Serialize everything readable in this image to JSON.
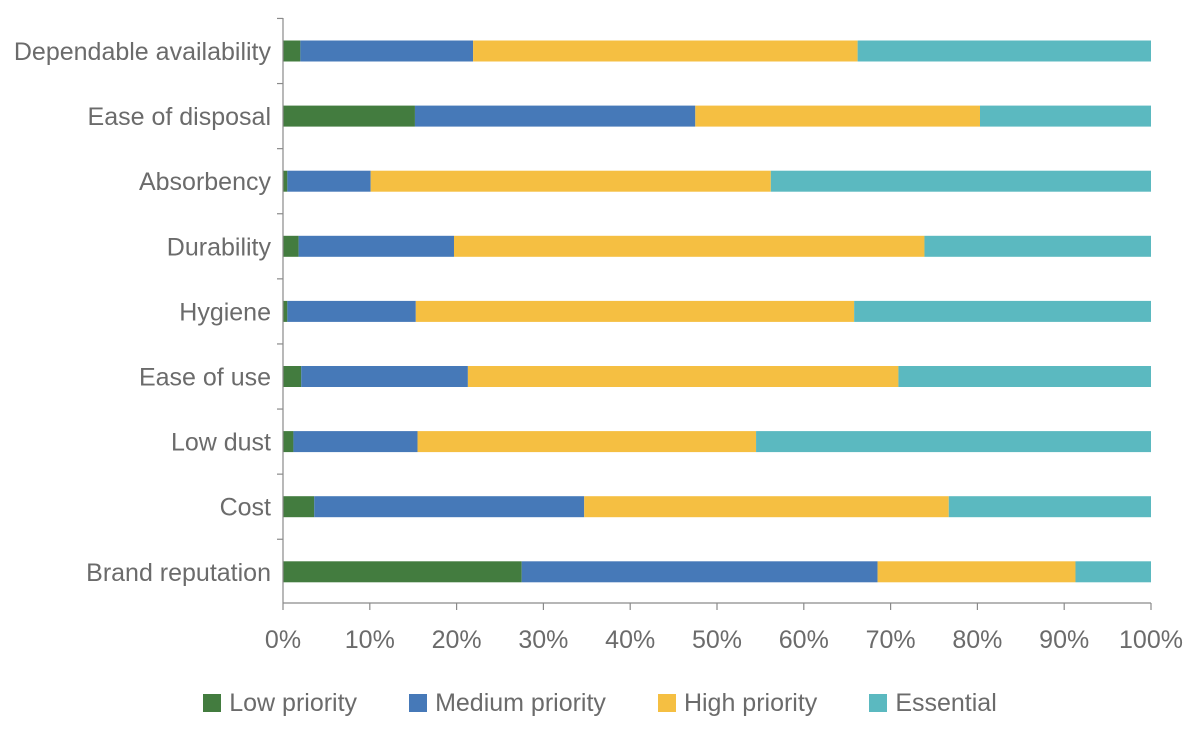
{
  "chart_data": {
    "type": "bar",
    "orientation": "horizontal",
    "stacked": true,
    "percent": true,
    "categories": [
      "Dependable availability",
      "Ease of disposal",
      "Absorbency",
      "Durability",
      "Hygiene",
      "Ease of use",
      "Low dust",
      "Cost",
      "Brand reputation"
    ],
    "series": [
      {
        "name": "Low priority",
        "color": "#437c3f",
        "values": [
          2,
          15.2,
          0.5,
          1.8,
          0.5,
          2.1,
          1.2,
          3.6,
          27.5
        ]
      },
      {
        "name": "Medium priority",
        "color": "#4679b8",
        "values": [
          19.9,
          32.3,
          9.6,
          17.9,
          14.8,
          19.2,
          14.3,
          31.1,
          41
        ]
      },
      {
        "name": "High priority",
        "color": "#f5bf42",
        "values": [
          44.3,
          32.8,
          46.1,
          54.2,
          50.5,
          49.6,
          39,
          42,
          22.8
        ]
      },
      {
        "name": "Essential",
        "color": "#5bb9c0",
        "values": [
          33.8,
          19.7,
          43.8,
          26.1,
          34.2,
          29.1,
          45.5,
          23.3,
          8.7
        ]
      }
    ],
    "xlim": [
      0,
      100
    ],
    "ticks": [
      "0%",
      "10%",
      "20%",
      "30%",
      "40%",
      "50%",
      "60%",
      "70%",
      "80%",
      "90%",
      "100%"
    ],
    "tick_values": [
      0,
      10,
      20,
      30,
      40,
      50,
      60,
      70,
      80,
      90,
      100
    ],
    "grid": false,
    "legend_position": "bottom"
  }
}
